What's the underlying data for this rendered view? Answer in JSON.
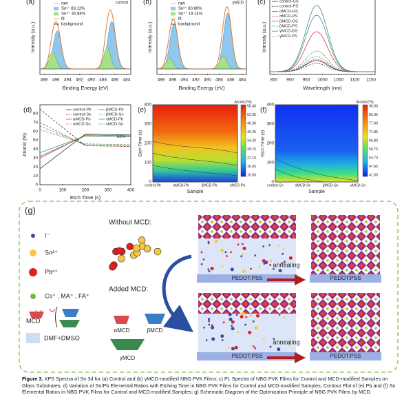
{
  "panels": {
    "a": {
      "label": "(a)",
      "tag": "control",
      "legend": [
        "raw",
        "Sn²⁺ 69.12%",
        "Sn⁴⁺ 30.88%",
        "fit",
        "background"
      ],
      "xlabel": "Binding Energy (eV)",
      "ylabel": "Intensity (a.u.)",
      "xticks": [
        "498",
        "496",
        "494",
        "492",
        "490",
        "488",
        "486",
        "484"
      ]
    },
    "b": {
      "label": "(b)",
      "tag": "γMCD",
      "legend": [
        "raw",
        "Sn²⁺ 80.86%",
        "Sn⁴⁺ 19.14%",
        "fit",
        "background"
      ],
      "xlabel": "Binding Energy (eV)",
      "ylabel": "Intensity (a.u.)",
      "xticks": [
        "498",
        "496",
        "494",
        "492",
        "490",
        "488",
        "486",
        "484"
      ]
    },
    "c": {
      "label": "(c)",
      "legend": [
        "control-GS",
        "control-PS",
        "αMCD-GS",
        "αMCD-PS",
        "βMCD-GS",
        "βMCD-PS",
        "γMCD-GS",
        "γMCD-PS"
      ],
      "xlabel": "Wavelength (nm)",
      "ylabel": "Intensity (a.u.)",
      "xticks": [
        "850",
        "900",
        "950",
        "1000",
        "1050",
        "1100",
        "1150"
      ]
    },
    "d": {
      "label": "(d)",
      "legend": [
        "control-Pb",
        "βMCD-Pb",
        "control-Sn",
        "βMCD-Sn",
        "αMCD-Pb",
        "γMCD-Pb",
        "αMCD-Sn",
        "γMCD-Sn"
      ],
      "annotation": "50%",
      "xlabel": "Etch Time (s)",
      "ylabel": "Atomic (%)",
      "xticks": [
        "0",
        "100",
        "200",
        "300",
        "400"
      ],
      "yticks": [
        "0",
        "10",
        "20",
        "30",
        "40",
        "50",
        "60",
        "70",
        "80"
      ]
    },
    "e": {
      "label": "(e)",
      "xlabel": "Sample",
      "ylabel": "Etch Time (s)",
      "categories": [
        "control-Pb",
        "αMCD-Pb",
        "βMCD-Pb",
        "γMCD-Pb"
      ],
      "yticks": [
        "0",
        "100",
        "200",
        "300",
        "400"
      ],
      "colorbar_title": "Atomic(%)",
      "colorbar_ticks": [
        "58.40",
        "52.35",
        "46.30",
        "40.25",
        "34.20",
        "28.15",
        "22.10",
        "16.05",
        "10.00"
      ]
    },
    "f": {
      "label": "(f)",
      "xlabel": "Sample",
      "ylabel": "Etch Time (s)",
      "categories": [
        "control-Sn",
        "αMCD-Sn",
        "βMCD-Sn",
        "γMCD-Sn"
      ],
      "yticks": [
        "0",
        "100",
        "200",
        "300",
        "400"
      ],
      "colorbar_title": "Atomic(%)",
      "colorbar_ticks": [
        "90.00",
        "83.95",
        "77.90",
        "71.85",
        "65.80",
        "59.75",
        "53.70",
        "47.65",
        "41.60"
      ]
    },
    "g": {
      "label": "(g)",
      "ions": [
        "I⁻",
        "Sn²⁺",
        "Pb²⁺",
        "Cs⁺ , MA⁺ , FA⁺"
      ],
      "mcd": "MCD",
      "solvent": "DMF+DMSO",
      "without": "Without MCD:",
      "added": "Added MCD:",
      "mcd_types": [
        "αMCD",
        "βMCD",
        "γMCD"
      ],
      "substrate": "PEDOT:PSS",
      "process": "annealing"
    }
  },
  "caption": {
    "lead": "Figure 3.",
    "text": "XPS Spectra of Sn 3d for (a) Control and (b) γMCD-modified NBG PVK Films; c) PL Spectra of NBG PVK Films for Control and MCD-modified Samples on Glass Substrates; d) Variation of Sn/Pb Elemental Ratios with Etching Time in NBG PVK Films for Control and MCD-modified Samples, Contour Plot of (e) Pb and (f) Sn Elemental Ratios in NBG PVK Films for Control and MCD-modified Samples; g) Schematic Diagram of the Optimization Principle of NBG PVK Films by MCD."
  }
}
